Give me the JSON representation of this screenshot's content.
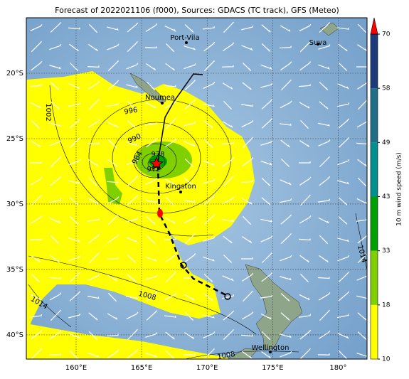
{
  "title": "Forecast of 2022021106 (f000), Sources: GDACS (TC track), GFS (Meteo)",
  "map": {
    "xlim": [
      156.2,
      182.2
    ],
    "ylim": [
      -41.85,
      -15.76
    ],
    "lon_ticks": [
      {
        "value": 160,
        "label": "160°E"
      },
      {
        "value": 165,
        "label": "165°E"
      },
      {
        "value": 170,
        "label": "170°E"
      },
      {
        "value": 175,
        "label": "175°E"
      },
      {
        "value": 180,
        "label": "180°"
      }
    ],
    "lat_ticks": [
      {
        "value": -20,
        "label": "20°S"
      },
      {
        "value": -25,
        "label": "25°S"
      },
      {
        "value": -30,
        "label": "30°S"
      },
      {
        "value": -35,
        "label": "35°S"
      },
      {
        "value": -40,
        "label": "40°S"
      }
    ],
    "places": [
      "Port-Vila",
      "Suva",
      "Noumea",
      "Kingston",
      "Wellington"
    ],
    "isobar_labels": [
      1002,
      996,
      990,
      984,
      978,
      972,
      1008,
      1014,
      1014,
      1008
    ]
  },
  "colorbar": {
    "label": "10 m wind speed (m/s)",
    "ticks": [
      10,
      18,
      33,
      43,
      49,
      58,
      70
    ],
    "colors": [
      "#ffff00",
      "#80d000",
      "#00a000",
      "#009090",
      "#1f6f8b",
      "#1b3b7a"
    ],
    "extend_color": "#ff0000"
  }
}
